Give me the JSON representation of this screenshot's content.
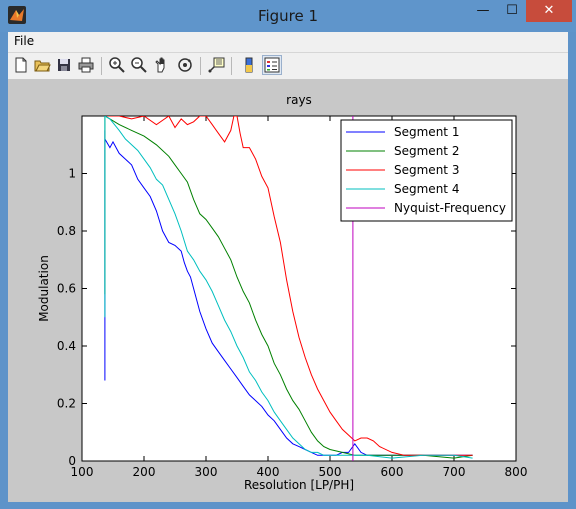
{
  "window": {
    "title": "Figure 1",
    "min_glyph": "—",
    "max_glyph": "☐",
    "close_glyph": "✕"
  },
  "menu": {
    "items": [
      "File"
    ]
  },
  "toolbar": {
    "buttons": [
      "new-file-icon",
      "open-folder-icon",
      "save-icon",
      "print-icon",
      "zoom-in-icon",
      "zoom-out-icon",
      "pan-hand-icon",
      "rotate-3d-icon",
      "data-cursor-icon",
      "colorbar-icon",
      "legend-icon"
    ]
  },
  "chart_data": {
    "type": "line",
    "title": "rays",
    "xlabel": "Resolution [LP/PH]",
    "ylabel": "Modulation",
    "xlim": [
      100,
      800
    ],
    "ylim": [
      0,
      1.2
    ],
    "xticks": [
      "100",
      "200",
      "300",
      "400",
      "500",
      "600",
      "700",
      "800"
    ],
    "yticks": [
      "0",
      "0.2",
      "0.4",
      "0.6",
      "0.8",
      "1"
    ],
    "legend_position": "top-right",
    "series": [
      {
        "name": "Segment 1",
        "color": "#0000ff",
        "x": [
          137,
          137,
          137,
          145,
          150,
          160,
          170,
          180,
          190,
          200,
          210,
          220,
          230,
          240,
          250,
          260,
          265,
          270,
          275,
          280,
          290,
          300,
          310,
          320,
          330,
          340,
          350,
          360,
          370,
          380,
          390,
          400,
          410,
          420,
          430,
          440,
          450,
          460,
          470,
          480,
          490,
          500,
          510,
          520,
          530,
          540,
          550,
          560,
          570,
          580,
          600,
          650,
          700,
          730
        ],
        "y": [
          0.28,
          1.15,
          1.12,
          1.09,
          1.11,
          1.07,
          1.05,
          1.03,
          0.98,
          0.95,
          0.92,
          0.87,
          0.8,
          0.76,
          0.75,
          0.73,
          0.69,
          0.66,
          0.64,
          0.6,
          0.52,
          0.46,
          0.41,
          0.38,
          0.35,
          0.32,
          0.29,
          0.26,
          0.23,
          0.21,
          0.19,
          0.16,
          0.14,
          0.11,
          0.08,
          0.06,
          0.05,
          0.04,
          0.03,
          0.02,
          0.02,
          0.02,
          0.02,
          0.03,
          0.03,
          0.06,
          0.03,
          0.02,
          0.02,
          0.02,
          0.02,
          0.02,
          0.02,
          0.02
        ]
      },
      {
        "name": "Segment 2",
        "color": "#008000",
        "x": [
          137,
          137,
          137,
          145,
          160,
          180,
          200,
          220,
          240,
          250,
          260,
          270,
          280,
          290,
          300,
          310,
          320,
          330,
          340,
          350,
          360,
          370,
          380,
          390,
          400,
          410,
          420,
          430,
          440,
          450,
          460,
          470,
          480,
          490,
          500,
          520,
          540,
          560,
          600,
          650,
          700,
          730
        ],
        "y": [
          0.58,
          0.75,
          1.2,
          1.19,
          1.17,
          1.15,
          1.13,
          1.1,
          1.06,
          1.03,
          1.0,
          0.97,
          0.91,
          0.86,
          0.84,
          0.81,
          0.78,
          0.74,
          0.7,
          0.64,
          0.59,
          0.55,
          0.49,
          0.44,
          0.4,
          0.34,
          0.3,
          0.25,
          0.21,
          0.18,
          0.14,
          0.1,
          0.07,
          0.05,
          0.04,
          0.03,
          0.02,
          0.02,
          0.02,
          0.02,
          0.01,
          0.02
        ]
      },
      {
        "name": "Segment 3",
        "color": "#ff0000",
        "x": [
          140,
          160,
          180,
          200,
          220,
          240,
          250,
          260,
          270,
          280,
          290,
          300,
          310,
          320,
          330,
          340,
          345,
          350,
          355,
          360,
          370,
          380,
          390,
          400,
          410,
          420,
          430,
          440,
          450,
          460,
          470,
          480,
          490,
          500,
          510,
          520,
          530,
          540,
          550,
          560,
          570,
          580,
          600,
          620,
          650,
          700,
          730
        ],
        "y": [
          1.2,
          1.2,
          1.19,
          1.2,
          1.17,
          1.2,
          1.16,
          1.19,
          1.17,
          1.18,
          1.2,
          1.2,
          1.17,
          1.14,
          1.11,
          1.15,
          1.2,
          1.2,
          1.14,
          1.09,
          1.09,
          1.05,
          0.99,
          0.95,
          0.85,
          0.76,
          0.63,
          0.52,
          0.43,
          0.36,
          0.3,
          0.25,
          0.21,
          0.17,
          0.14,
          0.11,
          0.09,
          0.07,
          0.08,
          0.08,
          0.07,
          0.05,
          0.03,
          0.02,
          0.02,
          0.02,
          0.02
        ]
      },
      {
        "name": "Segment 4",
        "color": "#00bfbf",
        "x": [
          137,
          137,
          137,
          145,
          160,
          170,
          180,
          190,
          200,
          210,
          220,
          230,
          240,
          250,
          260,
          270,
          280,
          290,
          300,
          310,
          320,
          330,
          340,
          350,
          360,
          370,
          380,
          390,
          400,
          410,
          420,
          430,
          440,
          450,
          460,
          470,
          480,
          490,
          500,
          520,
          540,
          560,
          600,
          650,
          700,
          730
        ],
        "y": [
          0.5,
          0.72,
          1.2,
          1.19,
          1.15,
          1.12,
          1.1,
          1.08,
          1.05,
          1.02,
          0.98,
          0.96,
          0.91,
          0.86,
          0.8,
          0.73,
          0.7,
          0.66,
          0.63,
          0.59,
          0.54,
          0.49,
          0.45,
          0.4,
          0.36,
          0.31,
          0.28,
          0.24,
          0.21,
          0.17,
          0.14,
          0.11,
          0.08,
          0.06,
          0.04,
          0.03,
          0.03,
          0.02,
          0.02,
          0.02,
          0.02,
          0.02,
          0.01,
          0.02,
          0.02,
          0.01
        ]
      },
      {
        "name": "Nyquist-Frequency",
        "color": "#bf00bf",
        "x": [
          537,
          537
        ],
        "y": [
          0,
          1.2
        ]
      }
    ]
  }
}
